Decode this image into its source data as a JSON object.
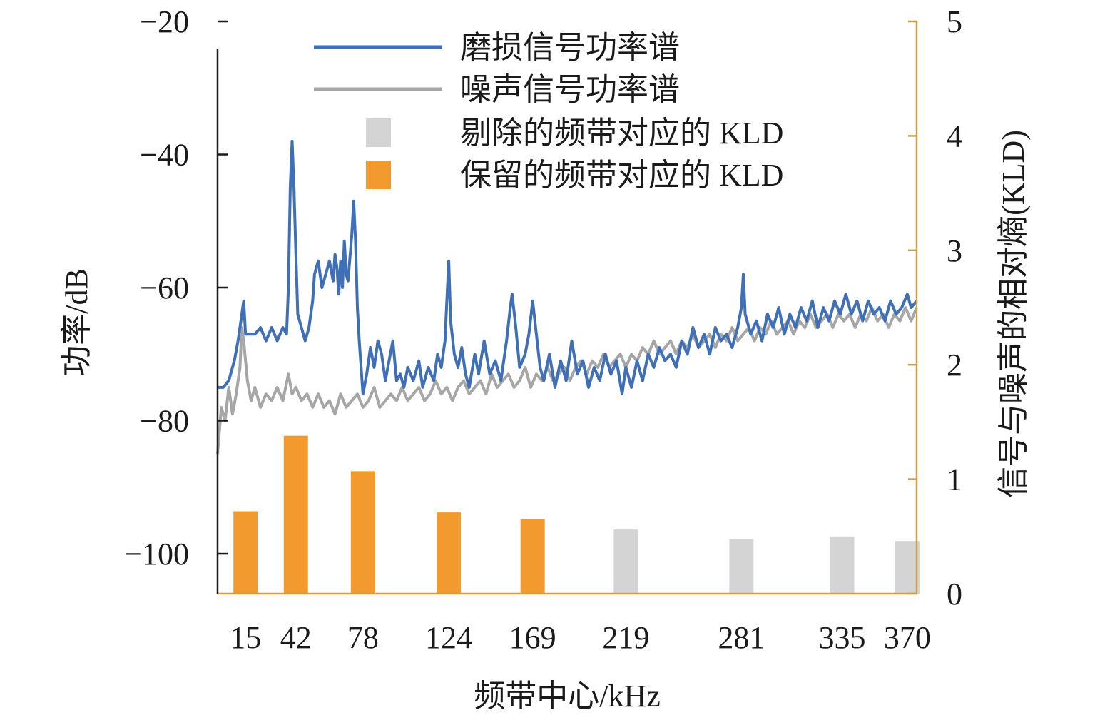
{
  "chart_data": {
    "type": "bar+line",
    "xlabel": "频带中心/kHz",
    "ylabel_left": "功率/dB",
    "ylabel_right": "信号与噪声的相对熵(KLD)",
    "x_range": [
      0,
      375
    ],
    "y_left_range": [
      -106,
      -20
    ],
    "y_right_range": [
      0,
      5
    ],
    "y_left_ticks": [
      -20,
      -40,
      -60,
      -80,
      -100
    ],
    "y_right_ticks": [
      0,
      1,
      2,
      3,
      4,
      5
    ],
    "x_tick_labels": [
      "15",
      "42",
      "78",
      "124",
      "169",
      "219",
      "281",
      "335",
      "370"
    ],
    "legend_position": "top-center",
    "legend": [
      {
        "label": "磨损信号功率谱",
        "kind": "line",
        "color": "#3f6fb7"
      },
      {
        "label": "噪声信号功率谱",
        "kind": "line",
        "color": "#a6a6a6"
      },
      {
        "label": "剔除的频带对应的 KLD",
        "kind": "bar",
        "color": "#d4d4d4"
      },
      {
        "label": "保留的频带对应的 KLD",
        "kind": "bar",
        "color": "#f29a2e"
      }
    ],
    "bars": {
      "centers": [
        15,
        42,
        78,
        124,
        169,
        219,
        281,
        335,
        370
      ],
      "kld": [
        0.72,
        1.38,
        1.07,
        0.71,
        0.65,
        0.56,
        0.48,
        0.5,
        0.46
      ],
      "retained": [
        true,
        true,
        true,
        true,
        true,
        false,
        false,
        false,
        false
      ],
      "retained_color": "#f29a2e",
      "removed_color": "#d4d4d4"
    },
    "series": [
      {
        "name": "磨损信号功率谱",
        "color": "#3f6fb7",
        "points": [
          [
            0,
            -75
          ],
          [
            3,
            -75
          ],
          [
            6,
            -74
          ],
          [
            9,
            -71
          ],
          [
            11,
            -68
          ],
          [
            13,
            -64
          ],
          [
            14,
            -62
          ],
          [
            15,
            -67
          ],
          [
            17,
            -67
          ],
          [
            20,
            -67
          ],
          [
            23,
            -66
          ],
          [
            26,
            -68
          ],
          [
            29,
            -66
          ],
          [
            32,
            -68
          ],
          [
            35,
            -66
          ],
          [
            37,
            -67
          ],
          [
            38,
            -60
          ],
          [
            39,
            -45
          ],
          [
            40,
            -38
          ],
          [
            41,
            -45
          ],
          [
            42,
            -55
          ],
          [
            43,
            -64
          ],
          [
            45,
            -66
          ],
          [
            47,
            -68
          ],
          [
            49,
            -66
          ],
          [
            51,
            -62
          ],
          [
            52,
            -58
          ],
          [
            54,
            -56
          ],
          [
            56,
            -60
          ],
          [
            58,
            -58
          ],
          [
            60,
            -56
          ],
          [
            62,
            -59
          ],
          [
            63,
            -55
          ],
          [
            64,
            -57
          ],
          [
            65,
            -61
          ],
          [
            66,
            -56
          ],
          [
            67,
            -60
          ],
          [
            68,
            -53
          ],
          [
            69,
            -58
          ],
          [
            70,
            -59
          ],
          [
            72,
            -52
          ],
          [
            73,
            -47
          ],
          [
            74,
            -53
          ],
          [
            75,
            -63
          ],
          [
            76,
            -68
          ],
          [
            77,
            -72
          ],
          [
            78,
            -76
          ],
          [
            80,
            -73
          ],
          [
            82,
            -69
          ],
          [
            84,
            -72
          ],
          [
            86,
            -68
          ],
          [
            88,
            -70
          ],
          [
            90,
            -74
          ],
          [
            92,
            -71
          ],
          [
            94,
            -68
          ],
          [
            96,
            -74
          ],
          [
            98,
            -73
          ],
          [
            100,
            -75
          ],
          [
            102,
            -72
          ],
          [
            105,
            -74
          ],
          [
            108,
            -71
          ],
          [
            110,
            -75
          ],
          [
            113,
            -72
          ],
          [
            116,
            -74
          ],
          [
            118,
            -70
          ],
          [
            120,
            -72
          ],
          [
            122,
            -68
          ],
          [
            123,
            -62
          ],
          [
            124,
            -56
          ],
          [
            125,
            -65
          ],
          [
            127,
            -70
          ],
          [
            129,
            -72
          ],
          [
            131,
            -69
          ],
          [
            133,
            -73
          ],
          [
            135,
            -75
          ],
          [
            138,
            -70
          ],
          [
            140,
            -73
          ],
          [
            143,
            -68
          ],
          [
            146,
            -73
          ],
          [
            149,
            -71
          ],
          [
            152,
            -74
          ],
          [
            155,
            -68
          ],
          [
            157,
            -63
          ],
          [
            158,
            -61
          ],
          [
            160,
            -66
          ],
          [
            162,
            -72
          ],
          [
            165,
            -70
          ],
          [
            167,
            -67
          ],
          [
            169,
            -62
          ],
          [
            171,
            -67
          ],
          [
            173,
            -72
          ],
          [
            175,
            -74
          ],
          [
            178,
            -70
          ],
          [
            181,
            -75
          ],
          [
            184,
            -71
          ],
          [
            187,
            -74
          ],
          [
            190,
            -68
          ],
          [
            193,
            -73
          ],
          [
            196,
            -71
          ],
          [
            199,
            -75
          ],
          [
            202,
            -72
          ],
          [
            205,
            -74
          ],
          [
            208,
            -70
          ],
          [
            211,
            -73
          ],
          [
            214,
            -71
          ],
          [
            217,
            -76
          ],
          [
            219,
            -72
          ],
          [
            222,
            -75
          ],
          [
            225,
            -71
          ],
          [
            228,
            -74
          ],
          [
            231,
            -70
          ],
          [
            234,
            -72
          ],
          [
            237,
            -69
          ],
          [
            240,
            -71
          ],
          [
            243,
            -70
          ],
          [
            246,
            -72
          ],
          [
            249,
            -68
          ],
          [
            252,
            -70
          ],
          [
            255,
            -66
          ],
          [
            258,
            -69
          ],
          [
            261,
            -67
          ],
          [
            264,
            -70
          ],
          [
            267,
            -66
          ],
          [
            270,
            -68
          ],
          [
            273,
            -67
          ],
          [
            276,
            -69
          ],
          [
            279,
            -66
          ],
          [
            281,
            -63
          ],
          [
            282,
            -58
          ],
          [
            283,
            -64
          ],
          [
            286,
            -67
          ],
          [
            289,
            -65
          ],
          [
            292,
            -68
          ],
          [
            295,
            -64
          ],
          [
            298,
            -66
          ],
          [
            301,
            -63
          ],
          [
            304,
            -67
          ],
          [
            307,
            -64
          ],
          [
            310,
            -66
          ],
          [
            313,
            -63
          ],
          [
            316,
            -65
          ],
          [
            319,
            -62
          ],
          [
            322,
            -66
          ],
          [
            325,
            -63
          ],
          [
            328,
            -65
          ],
          [
            331,
            -62
          ],
          [
            334,
            -64
          ],
          [
            337,
            -61
          ],
          [
            340,
            -64
          ],
          [
            343,
            -62
          ],
          [
            346,
            -65
          ],
          [
            349,
            -62
          ],
          [
            352,
            -64
          ],
          [
            355,
            -63
          ],
          [
            358,
            -65
          ],
          [
            361,
            -62
          ],
          [
            364,
            -64
          ],
          [
            367,
            -63
          ],
          [
            370,
            -61
          ],
          [
            372,
            -63
          ],
          [
            375,
            -62
          ]
        ]
      },
      {
        "name": "噪声信号功率谱",
        "color": "#a6a6a6",
        "points": [
          [
            0,
            -85
          ],
          [
            2,
            -78
          ],
          [
            4,
            -80
          ],
          [
            6,
            -75
          ],
          [
            8,
            -79
          ],
          [
            10,
            -76
          ],
          [
            12,
            -72
          ],
          [
            13,
            -66
          ],
          [
            14,
            -68
          ],
          [
            16,
            -74
          ],
          [
            18,
            -77
          ],
          [
            20,
            -75
          ],
          [
            23,
            -78
          ],
          [
            26,
            -76
          ],
          [
            29,
            -77
          ],
          [
            32,
            -75
          ],
          [
            35,
            -77
          ],
          [
            38,
            -73
          ],
          [
            40,
            -76
          ],
          [
            42,
            -75
          ],
          [
            45,
            -77
          ],
          [
            48,
            -76
          ],
          [
            51,
            -78
          ],
          [
            54,
            -76
          ],
          [
            57,
            -78
          ],
          [
            60,
            -77
          ],
          [
            63,
            -79
          ],
          [
            66,
            -76
          ],
          [
            69,
            -78
          ],
          [
            72,
            -77
          ],
          [
            75,
            -76
          ],
          [
            78,
            -78
          ],
          [
            81,
            -77
          ],
          [
            84,
            -75
          ],
          [
            87,
            -78
          ],
          [
            90,
            -77
          ],
          [
            93,
            -76
          ],
          [
            96,
            -77
          ],
          [
            99,
            -75
          ],
          [
            102,
            -77
          ],
          [
            105,
            -76
          ],
          [
            108,
            -75
          ],
          [
            111,
            -77
          ],
          [
            114,
            -76
          ],
          [
            117,
            -74
          ],
          [
            120,
            -76
          ],
          [
            123,
            -75
          ],
          [
            126,
            -77
          ],
          [
            129,
            -75
          ],
          [
            132,
            -74
          ],
          [
            135,
            -76
          ],
          [
            138,
            -75
          ],
          [
            141,
            -74
          ],
          [
            144,
            -76
          ],
          [
            147,
            -73
          ],
          [
            150,
            -75
          ],
          [
            153,
            -74
          ],
          [
            156,
            -73
          ],
          [
            159,
            -75
          ],
          [
            162,
            -74
          ],
          [
            165,
            -72
          ],
          [
            168,
            -75
          ],
          [
            171,
            -73
          ],
          [
            174,
            -74
          ],
          [
            177,
            -72
          ],
          [
            180,
            -74
          ],
          [
            183,
            -73
          ],
          [
            186,
            -72
          ],
          [
            189,
            -74
          ],
          [
            192,
            -72
          ],
          [
            195,
            -71
          ],
          [
            198,
            -73
          ],
          [
            201,
            -71
          ],
          [
            204,
            -72
          ],
          [
            207,
            -70
          ],
          [
            210,
            -72
          ],
          [
            213,
            -71
          ],
          [
            216,
            -70
          ],
          [
            219,
            -72
          ],
          [
            222,
            -70
          ],
          [
            225,
            -71
          ],
          [
            228,
            -69
          ],
          [
            231,
            -70
          ],
          [
            234,
            -68
          ],
          [
            237,
            -70
          ],
          [
            240,
            -69
          ],
          [
            243,
            -68
          ],
          [
            246,
            -70
          ],
          [
            249,
            -68
          ],
          [
            252,
            -69
          ],
          [
            255,
            -67
          ],
          [
            258,
            -69
          ],
          [
            261,
            -68
          ],
          [
            264,
            -67
          ],
          [
            267,
            -69
          ],
          [
            270,
            -67
          ],
          [
            273,
            -68
          ],
          [
            276,
            -66
          ],
          [
            279,
            -68
          ],
          [
            282,
            -67
          ],
          [
            285,
            -66
          ],
          [
            288,
            -68
          ],
          [
            291,
            -66
          ],
          [
            294,
            -67
          ],
          [
            297,
            -65
          ],
          [
            300,
            -67
          ],
          [
            303,
            -66
          ],
          [
            306,
            -65
          ],
          [
            309,
            -67
          ],
          [
            312,
            -65
          ],
          [
            315,
            -66
          ],
          [
            318,
            -64
          ],
          [
            321,
            -66
          ],
          [
            324,
            -65
          ],
          [
            327,
            -64
          ],
          [
            330,
            -66
          ],
          [
            333,
            -64
          ],
          [
            336,
            -65
          ],
          [
            339,
            -64
          ],
          [
            342,
            -66
          ],
          [
            345,
            -64
          ],
          [
            348,
            -65
          ],
          [
            351,
            -63
          ],
          [
            354,
            -65
          ],
          [
            357,
            -64
          ],
          [
            360,
            -66
          ],
          [
            363,
            -64
          ],
          [
            366,
            -65
          ],
          [
            369,
            -63
          ],
          [
            372,
            -65
          ],
          [
            375,
            -63
          ]
        ]
      }
    ]
  }
}
